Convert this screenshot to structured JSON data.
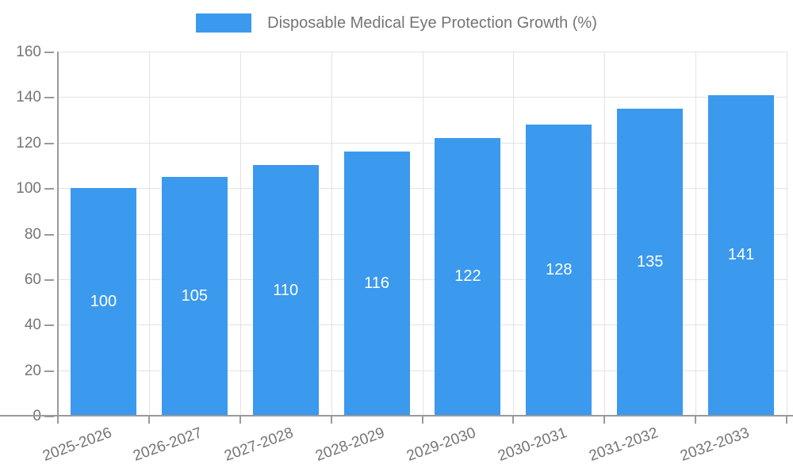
{
  "legend": {
    "label": "Disposable Medical Eye Protection Growth (%)"
  },
  "chart_data": {
    "type": "bar",
    "title": "Disposable Medical Eye Protection Growth (%)",
    "categories": [
      "2025-2026",
      "2026-2027",
      "2027-2028",
      "2028-2029",
      "2029-2030",
      "2030-2031",
      "2031-2032",
      "2032-2033"
    ],
    "values": [
      100,
      105,
      110,
      116,
      122,
      128,
      135,
      141
    ],
    "value_labels": [
      "100",
      "105",
      "110",
      "116",
      "122",
      "128",
      "135",
      "141"
    ],
    "xlabel": "",
    "ylabel": "",
    "ylim": [
      0,
      160
    ],
    "ytick_step": 20,
    "yticks": [
      0,
      20,
      40,
      60,
      80,
      100,
      120,
      140,
      160
    ],
    "grid": true,
    "legend_position": "top",
    "x_label_rotation_deg": -20,
    "colors": {
      "bar": "#3B99EE",
      "bar_value_text": "#ffffff",
      "axis_text": "#757575",
      "axis_line": "#9a9a9a",
      "gridline": "#e3e3e3",
      "background": "#ffffff"
    }
  }
}
